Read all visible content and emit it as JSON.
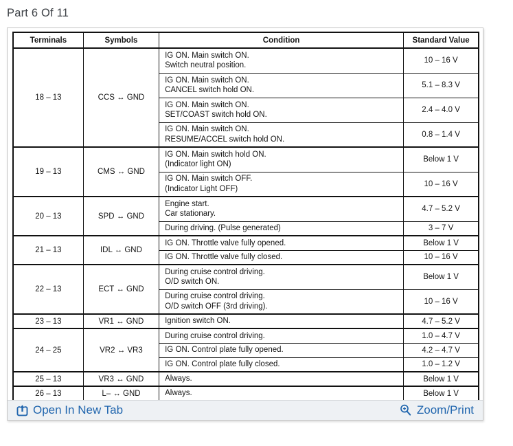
{
  "page_title": "Part 6 Of 11",
  "colors": {
    "link_blue": "#2166ae",
    "title_gray": "#3e4247",
    "footer_background": "#eef1f4",
    "table_border": "#111111"
  },
  "table": {
    "headers": [
      "Terminals",
      "Symbols",
      "Condition",
      "Standard Value"
    ],
    "groups": [
      {
        "terminals": "18 – 13",
        "symbols": "CCS ↔ GND",
        "rows": [
          {
            "condition": "IG ON. Main switch ON.\nSwitch neutral position.",
            "value": "10 – 16 V"
          },
          {
            "condition": "IG ON. Main switch ON.\nCANCEL switch hold ON.",
            "value": "5.1 – 8.3 V"
          },
          {
            "condition": "IG ON. Main switch ON.\nSET/COAST switch hold ON.",
            "value": "2.4 – 4.0 V"
          },
          {
            "condition": "IG ON. Main switch ON.\nRESUME/ACCEL switch hold ON.",
            "value": "0.8 – 1.4 V"
          }
        ]
      },
      {
        "terminals": "19 – 13",
        "symbols": "CMS ↔ GND",
        "rows": [
          {
            "condition": "IG ON. Main switch hold ON.\n(Indicator light ON)",
            "value": "Below 1 V"
          },
          {
            "condition": "IG ON. Main switch OFF.\n(Indicator Light OFF)",
            "value": "10 – 16 V"
          }
        ]
      },
      {
        "terminals": "20 – 13",
        "symbols": "SPD ↔ GND",
        "rows": [
          {
            "condition": "Engine start.\nCar stationary.",
            "value": "4.7 – 5.2 V"
          },
          {
            "condition": "During driving. (Pulse generated)",
            "value": "3 – 7 V"
          }
        ]
      },
      {
        "terminals": "21 – 13",
        "symbols": "IDL ↔ GND",
        "rows": [
          {
            "condition": "IG ON. Throttle valve fully opened.",
            "value": "Below 1 V"
          },
          {
            "condition": "IG ON. Throttle valve fully closed.",
            "value": "10 – 16 V"
          }
        ]
      },
      {
        "terminals": "22 – 13",
        "symbols": "ECT ↔ GND",
        "rows": [
          {
            "condition": "During cruise control driving.\nO/D switch ON.",
            "value": "Below 1 V"
          },
          {
            "condition": "During cruise control driving.\nO/D switch OFF (3rd driving).",
            "value": "10 – 16 V"
          }
        ]
      },
      {
        "terminals": "23 – 13",
        "symbols": "VR1 ↔ GND",
        "rows": [
          {
            "condition": "Ignition switch ON.",
            "value": "4.7 – 5.2 V"
          }
        ]
      },
      {
        "terminals": "24 – 25",
        "symbols": "VR2 ↔ VR3",
        "rows": [
          {
            "condition": "During cruise control driving.",
            "value": "1.0 – 4.7 V"
          },
          {
            "condition": "IG ON. Control plate fully opened.",
            "value": "4.2 – 4.7 V"
          },
          {
            "condition": "IG ON. Control plate fully closed.",
            "value": "1.0 – 1.2 V"
          }
        ]
      },
      {
        "terminals": "25 – 13",
        "symbols": "VR3 ↔ GND",
        "rows": [
          {
            "condition": "Always.",
            "value": "Below 1 V"
          }
        ]
      },
      {
        "terminals": "26 – 13",
        "symbols": "L– ↔ GND",
        "rows": [
          {
            "condition": "Always.",
            "value": "Below 1 V"
          }
        ]
      }
    ]
  },
  "footer": {
    "open_label": "Open In New Tab",
    "zoom_label": "Zoom/Print"
  }
}
